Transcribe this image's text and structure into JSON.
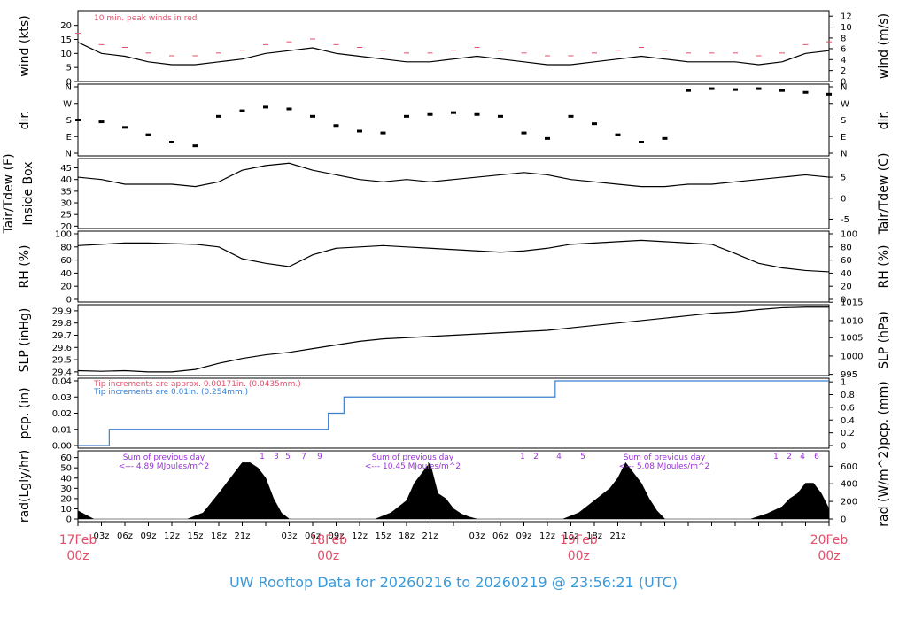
{
  "title": "UW Rooftop Data for 20260216  to  20260219 @ 23:56:21  (UTC)",
  "colors": {
    "title": "#3a9ad9",
    "date": "#e0506a",
    "peak": "#e0506a",
    "precip": "#3a7fd0",
    "purple": "#9a30d8",
    "line": "#000000"
  },
  "chart_data": [
    {
      "type": "line",
      "panel": "wind",
      "ylabel_left": "wind (kts)",
      "ylabel_right": "wind (m/s)",
      "left_ticks": [
        "0",
        "5",
        "10",
        "15",
        "20"
      ],
      "right_ticks": [
        "0",
        "2",
        "4",
        "6",
        "8",
        "10",
        "12"
      ],
      "ylim": [
        0,
        24
      ],
      "annotation": "10 min. peak winds in red",
      "series": [
        {
          "name": "",
          "x": [
            0,
            3,
            6,
            9,
            12,
            15,
            18,
            21,
            24,
            27,
            30,
            33,
            36,
            39,
            42,
            45,
            48,
            51,
            54,
            57,
            60,
            63,
            66,
            69,
            72,
            75,
            78,
            81,
            84,
            87,
            90,
            93,
            96
          ],
          "values": [
            14,
            10,
            9,
            7,
            6,
            6,
            7,
            8,
            10,
            11,
            12,
            10,
            9,
            8,
            7,
            7,
            8,
            9,
            8,
            7,
            6,
            6,
            7,
            8,
            9,
            8,
            7,
            7,
            7,
            6,
            7,
            10,
            11
          ]
        }
      ]
    },
    {
      "type": "scatter",
      "panel": "dir",
      "ylabel_left": "dir.",
      "ylabel_right": "dir.",
      "left_ticks": [
        "N",
        "E",
        "S",
        "W",
        "N"
      ],
      "right_ticks": [
        "N",
        "E",
        "S",
        "W",
        "N"
      ],
      "ylim": [
        0,
        360
      ],
      "series": [
        {
          "name": "",
          "x": [
            0,
            3,
            6,
            9,
            12,
            15,
            18,
            21,
            24,
            27,
            30,
            33,
            36,
            39,
            42,
            45,
            48,
            51,
            54,
            57,
            60,
            63,
            66,
            69,
            72,
            75,
            78,
            81,
            84,
            87,
            90,
            93,
            96
          ],
          "values": [
            180,
            170,
            140,
            100,
            60,
            40,
            200,
            230,
            250,
            240,
            200,
            150,
            120,
            110,
            200,
            210,
            220,
            210,
            200,
            110,
            80,
            200,
            160,
            100,
            60,
            80,
            340,
            350,
            345,
            350,
            340,
            330,
            320
          ]
        }
      ]
    },
    {
      "type": "line",
      "panel": "temp",
      "ylabel_left": "Tair/Tdew (F)",
      "ylabel_left2": "Inside Box",
      "ylabel_right": "Tair/Tdew (C)",
      "left_ticks": [
        "20",
        "25",
        "30",
        "35",
        "40",
        "45"
      ],
      "right_ticks": [
        "-5",
        "0",
        "5"
      ],
      "ylim": [
        19,
        49
      ],
      "series": [
        {
          "name": "",
          "x": [
            0,
            3,
            6,
            9,
            12,
            15,
            18,
            21,
            24,
            27,
            30,
            33,
            36,
            39,
            42,
            45,
            48,
            51,
            54,
            57,
            60,
            63,
            66,
            69,
            72,
            75,
            78,
            81,
            84,
            87,
            90,
            93,
            96
          ],
          "values": [
            41,
            40,
            38,
            38,
            38,
            37,
            39,
            44,
            46,
            47,
            44,
            42,
            40,
            39,
            40,
            39,
            40,
            41,
            42,
            43,
            42,
            40,
            39,
            38,
            37,
            37,
            38,
            38,
            39,
            40,
            41,
            42,
            41
          ]
        }
      ]
    },
    {
      "type": "line",
      "panel": "rh",
      "ylabel_left": "RH (%)",
      "ylabel_right": "RH (%)",
      "left_ticks": [
        "0",
        "20",
        "40",
        "60",
        "80",
        "100"
      ],
      "right_ticks": [
        "0",
        "20",
        "40",
        "60",
        "80",
        "100"
      ],
      "ylim": [
        0,
        100
      ],
      "series": [
        {
          "name": "",
          "x": [
            0,
            3,
            6,
            9,
            12,
            15,
            18,
            21,
            24,
            27,
            30,
            33,
            36,
            39,
            42,
            45,
            48,
            51,
            54,
            57,
            60,
            63,
            66,
            69,
            72,
            75,
            78,
            81,
            84,
            87,
            90,
            93,
            96
          ],
          "values": [
            82,
            84,
            86,
            86,
            85,
            84,
            80,
            62,
            55,
            50,
            68,
            78,
            80,
            82,
            80,
            78,
            76,
            74,
            72,
            74,
            78,
            84,
            86,
            88,
            90,
            88,
            86,
            84,
            70,
            55,
            48,
            44,
            42
          ]
        }
      ]
    },
    {
      "type": "line",
      "panel": "slp",
      "ylabel_left": "SLP (inHg)",
      "ylabel_right": "SLP (hPa)",
      "left_ticks": [
        "29.4",
        "29.5",
        "29.6",
        "29.7",
        "29.8",
        "29.9"
      ],
      "right_ticks": [
        "995",
        "1000",
        "1005",
        "1010",
        "1015"
      ],
      "ylim": [
        29.37,
        29.95
      ],
      "series": [
        {
          "name": "",
          "x": [
            0,
            3,
            6,
            9,
            12,
            15,
            18,
            21,
            24,
            27,
            30,
            33,
            36,
            39,
            42,
            45,
            48,
            51,
            54,
            57,
            60,
            63,
            66,
            69,
            72,
            75,
            78,
            81,
            84,
            87,
            90,
            93,
            96
          ],
          "values": [
            29.41,
            29.405,
            29.41,
            29.4,
            29.4,
            29.42,
            29.47,
            29.51,
            29.54,
            29.56,
            29.59,
            29.62,
            29.65,
            29.67,
            29.68,
            29.69,
            29.7,
            29.71,
            29.72,
            29.73,
            29.74,
            29.76,
            29.78,
            29.8,
            29.82,
            29.84,
            29.86,
            29.88,
            29.89,
            29.91,
            29.925,
            29.93,
            29.93
          ]
        }
      ]
    },
    {
      "type": "line",
      "panel": "pcp",
      "ylabel_left": "pcp. (in)",
      "ylabel_right": "pcp. (mm)",
      "left_ticks": [
        "0.00",
        "0.01",
        "0.02",
        "0.03",
        "0.04"
      ],
      "right_ticks": [
        "0",
        "0.2",
        "0.4",
        "0.6",
        "0.8",
        "1"
      ],
      "ylim": [
        0,
        0.04
      ],
      "note1": "Tip increments are approx. 0.00171in. (0.0435mm.)",
      "note2": "Tip increments are 0.01in. (0.254mm.)",
      "series": [
        {
          "name": "",
          "x": [
            0,
            4,
            4,
            32,
            32,
            34,
            34,
            61,
            61,
            96
          ],
          "values": [
            0,
            0,
            0.01,
            0.01,
            0.02,
            0.02,
            0.03,
            0.03,
            0.04,
            0.04
          ]
        }
      ]
    },
    {
      "type": "area",
      "panel": "rad",
      "ylabel_left": "rad(Lgly/hr)",
      "ylabel_right": "rad (W/m^2)",
      "left_ticks": [
        "0",
        "10",
        "20",
        "30",
        "40",
        "50",
        "60"
      ],
      "right_ticks": [
        "0",
        "200",
        "400",
        "600"
      ],
      "ylim": [
        0,
        64
      ],
      "daily": [
        {
          "line1": "Sum of previous day",
          "line2": "<--- 4.89 MJoules/m^2"
        },
        {
          "line1": "Sum of previous day",
          "line2": "<--- 10.45 MJoules/m^2"
        },
        {
          "line1": "Sum of previous day",
          "line2": "<--- 5.08 MJoules/m^2"
        }
      ],
      "hour_marks": [
        [
          "1",
          "3",
          "5",
          "7",
          "9"
        ],
        [
          "1",
          "2",
          "4",
          "5"
        ],
        [
          "1",
          "2",
          "4",
          "6"
        ]
      ],
      "series": [
        {
          "name": "",
          "x": [
            0,
            1,
            2,
            14,
            16,
            18,
            20,
            21,
            22,
            23,
            24,
            25,
            26,
            27,
            38,
            40,
            42,
            43,
            44,
            45,
            46,
            47,
            48,
            49,
            50,
            51,
            62,
            64,
            66,
            68,
            69,
            70,
            71,
            72,
            73,
            74,
            75,
            86,
            88,
            90,
            91,
            92,
            93,
            94,
            95,
            96
          ],
          "values": [
            8,
            4,
            0,
            0,
            6,
            25,
            45,
            55,
            55,
            50,
            40,
            20,
            6,
            0,
            0,
            6,
            18,
            35,
            45,
            55,
            25,
            20,
            10,
            5,
            2,
            0,
            0,
            6,
            18,
            30,
            40,
            55,
            45,
            35,
            20,
            8,
            0,
            0,
            5,
            12,
            20,
            25,
            35,
            35,
            25,
            10
          ]
        }
      ]
    }
  ],
  "x_axis": {
    "ticks": [
      "03z",
      "06z",
      "09z",
      "12z",
      "15z",
      "18z",
      "21z",
      "03z",
      "06z",
      "09z",
      "12z",
      "15z",
      "18z",
      "21z",
      "03z",
      "06z",
      "09z",
      "12z",
      "15z",
      "18z",
      "21z"
    ],
    "dates": [
      {
        "date": "17Feb",
        "time": "00z"
      },
      {
        "date": "18Feb",
        "time": "00z"
      },
      {
        "date": "19Feb",
        "time": "00z"
      },
      {
        "date": "20Feb",
        "time": "00z"
      }
    ]
  }
}
